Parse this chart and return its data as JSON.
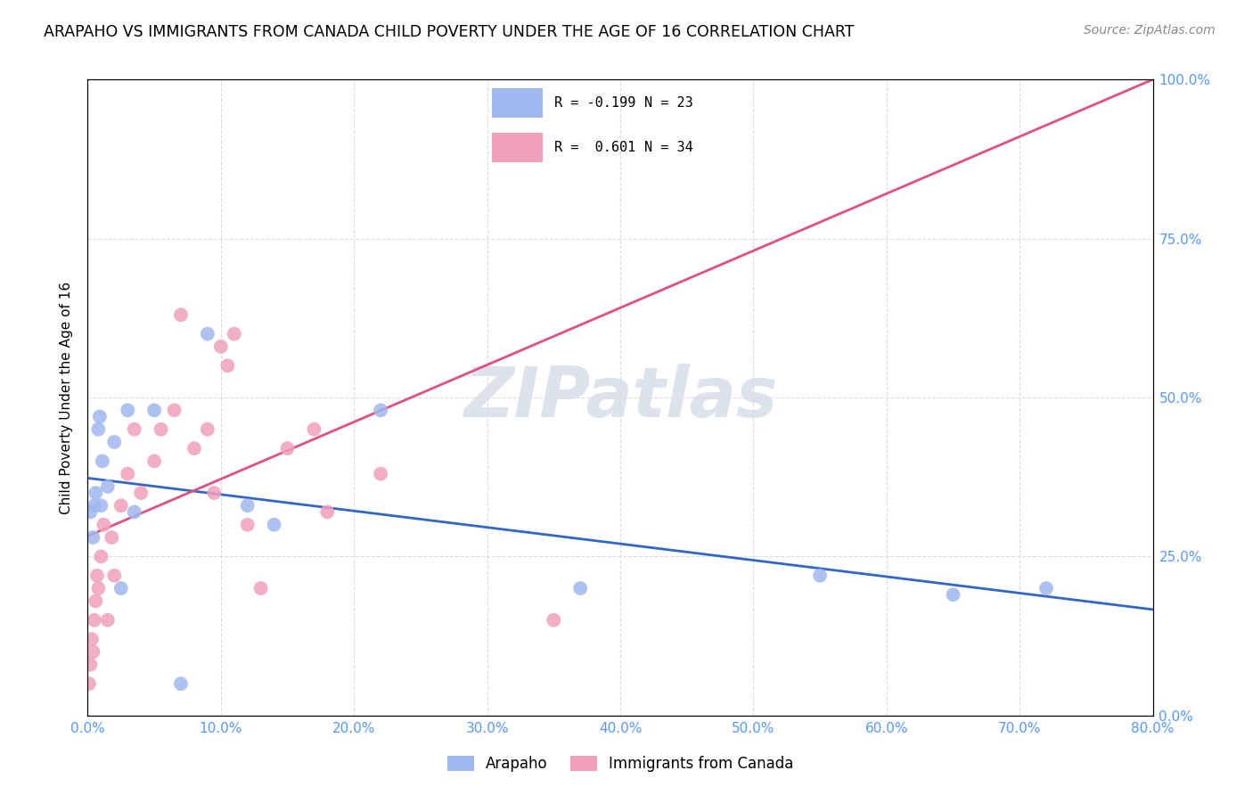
{
  "title": "ARAPAHO VS IMMIGRANTS FROM CANADA CHILD POVERTY UNDER THE AGE OF 16 CORRELATION CHART",
  "source": "Source: ZipAtlas.com",
  "ylabel_label": "Child Poverty Under the Age of 16",
  "legend_label_arapaho": "Arapaho",
  "legend_label_canada": "Immigrants from Canada",
  "arapaho_color": "#a0b8f0",
  "canada_color": "#f0a0b8",
  "trendline_arapaho_color": "#3366cc",
  "trendline_canada_color": "#e05080",
  "R_arapaho": -0.199,
  "N_arapaho": 23,
  "R_canada": 0.601,
  "N_canada": 34,
  "watermark_text": "ZIPatlas",
  "background_color": "#ffffff",
  "grid_color": "#dddddd",
  "tick_label_color": "#5599ff",
  "arapaho_x": [
    0.2,
    0.4,
    0.5,
    0.6,
    0.8,
    0.9,
    1.0,
    1.1,
    1.5,
    2.0,
    2.5,
    3.0,
    3.5,
    5.0,
    7.0,
    9.0,
    12.0,
    14.0,
    22.0,
    37.0,
    55.0,
    65.0,
    72.0
  ],
  "arapaho_y": [
    32,
    28,
    33,
    35,
    45,
    47,
    33,
    40,
    36,
    43,
    20,
    48,
    32,
    48,
    5,
    60,
    33,
    30,
    48,
    20,
    22,
    19,
    20
  ],
  "canada_x": [
    0.1,
    0.2,
    0.3,
    0.4,
    0.5,
    0.6,
    0.7,
    0.8,
    1.0,
    1.2,
    1.5,
    1.8,
    2.0,
    2.5,
    3.0,
    3.5,
    4.0,
    5.0,
    5.5,
    6.5,
    7.0,
    8.0,
    9.0,
    9.5,
    10.0,
    10.5,
    11.0,
    12.0,
    13.0,
    15.0,
    17.0,
    18.0,
    22.0,
    35.0
  ],
  "canada_y": [
    5,
    8,
    12,
    10,
    15,
    18,
    22,
    20,
    25,
    30,
    15,
    28,
    22,
    33,
    38,
    45,
    35,
    40,
    45,
    48,
    63,
    42,
    45,
    35,
    58,
    55,
    60,
    30,
    20,
    42,
    45,
    32,
    38,
    15
  ],
  "xlim": [
    0,
    80
  ],
  "ylim": [
    0,
    100
  ],
  "xticks": [
    0,
    10,
    20,
    30,
    40,
    50,
    60,
    70,
    80
  ],
  "yticks": [
    0,
    25,
    50,
    75,
    100
  ],
  "xtick_labels": [
    "0.0%",
    "10.0%",
    "20.0%",
    "30.0%",
    "40.0%",
    "50.0%",
    "60.0%",
    "70.0%",
    "80.0%"
  ],
  "ytick_labels": [
    "0.0%",
    "25.0%",
    "50.0%",
    "75.0%",
    "100.0%"
  ],
  "legend_R_arapaho_str": "R = -0.199",
  "legend_N_arapaho_str": "N = 23",
  "legend_R_canada_str": "R =  0.601",
  "legend_N_canada_str": "N = 34"
}
